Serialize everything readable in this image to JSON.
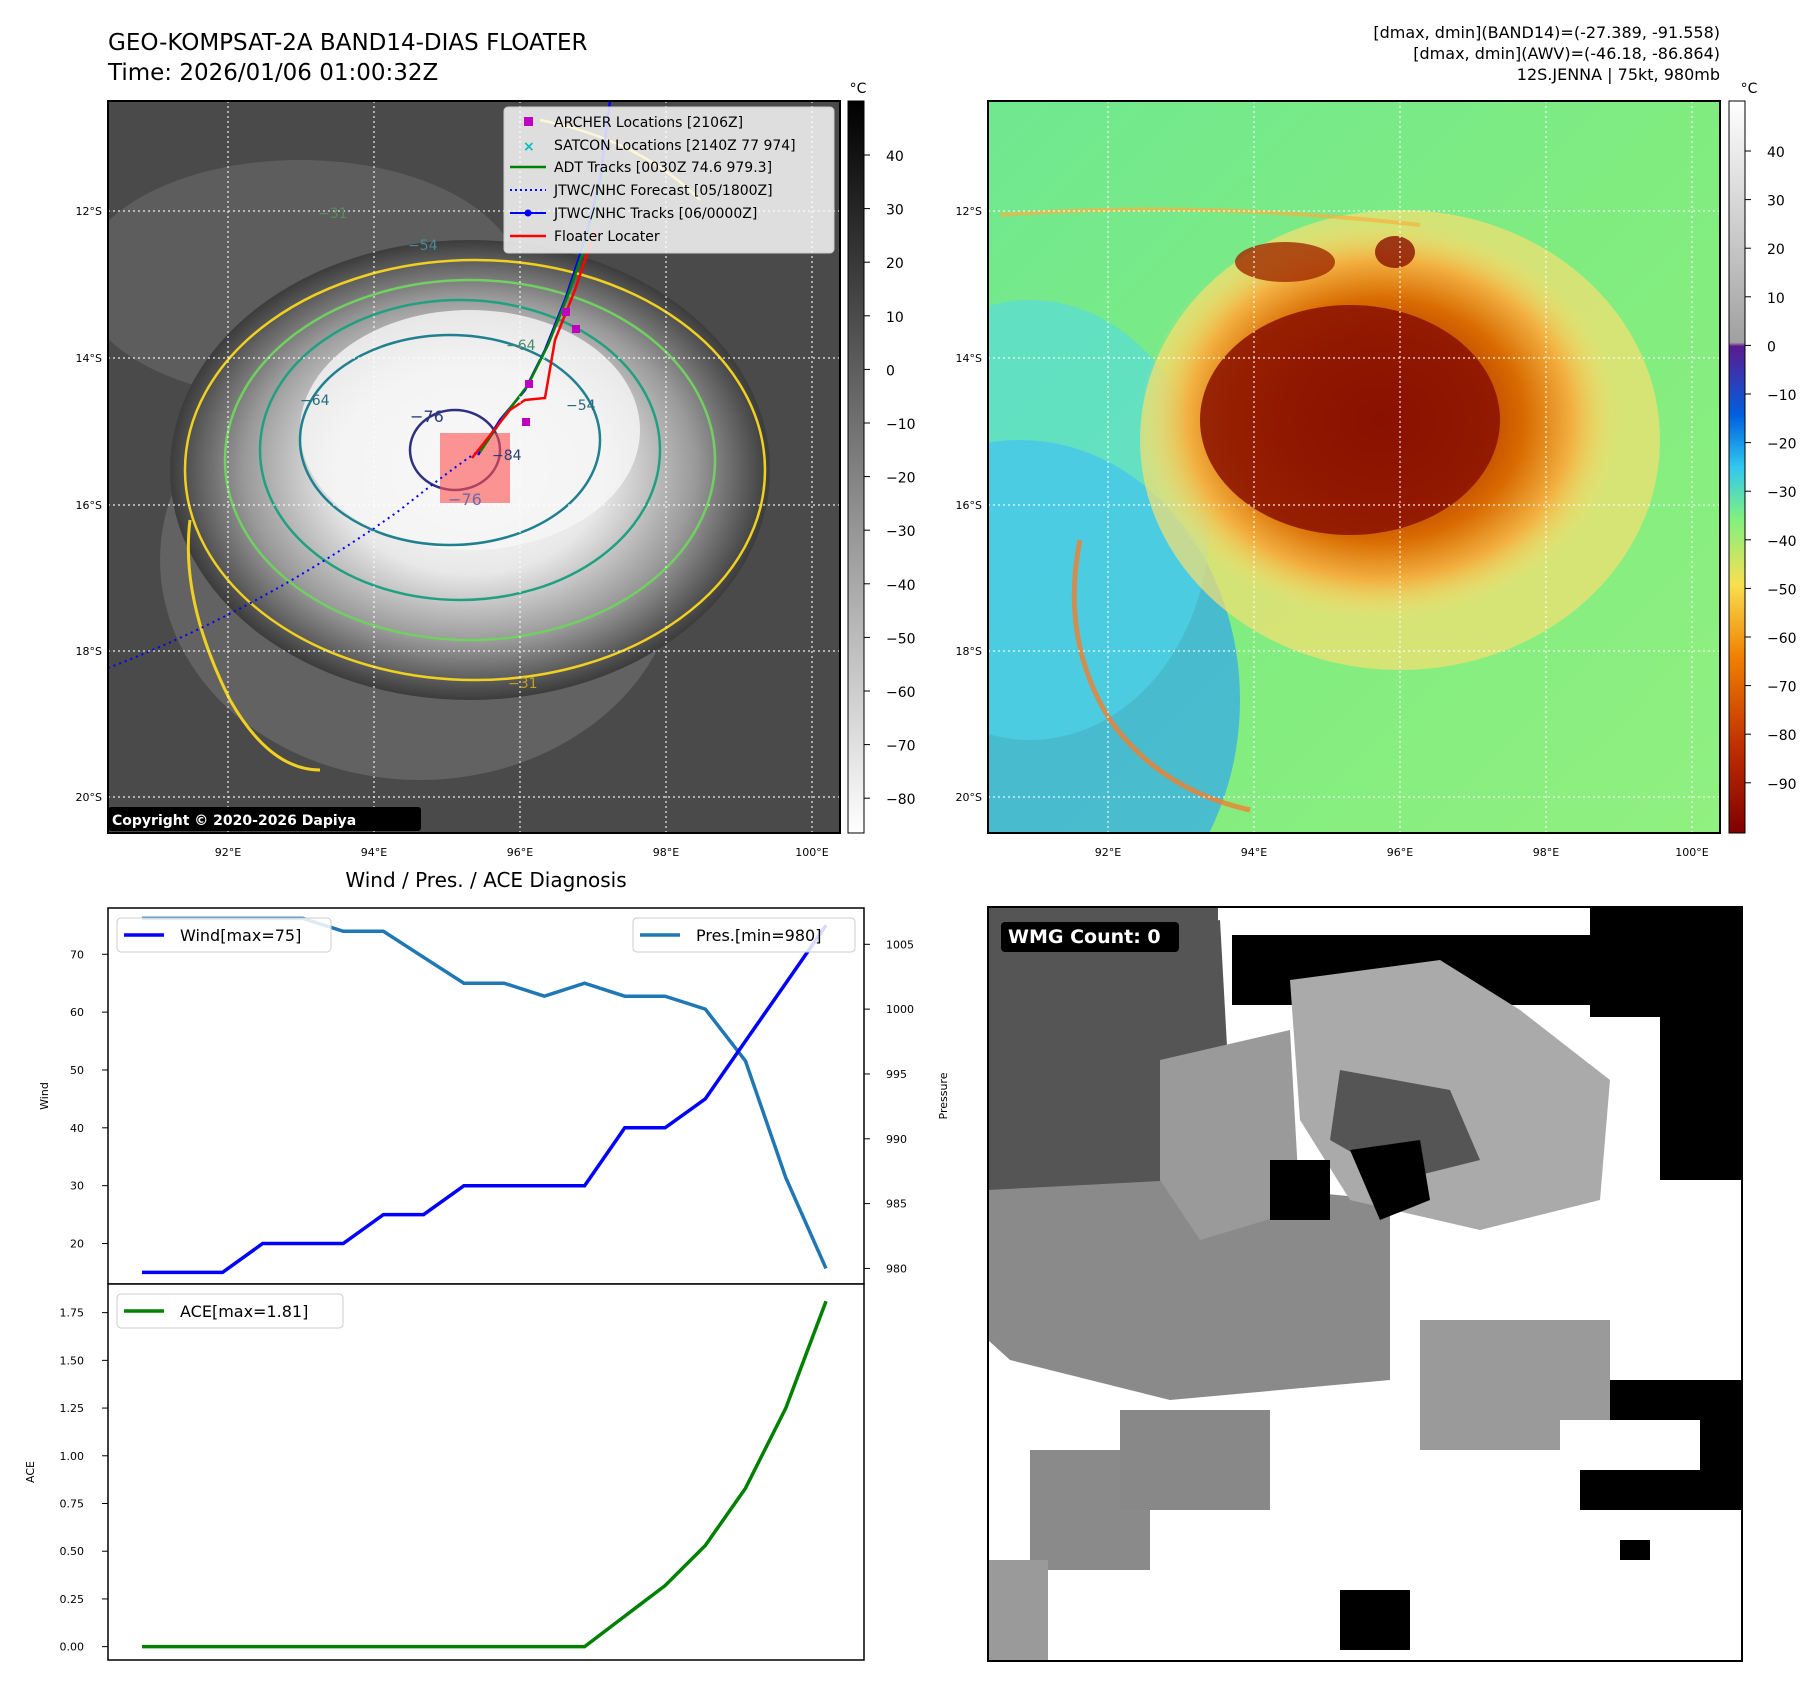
{
  "header": {
    "title_line1": "GEO-KOMPSAT-2A BAND14-DIAS FLOATER",
    "title_line2": "Time: 2026/01/06 01:00:32Z",
    "info_line1": "[dmax, dmin](BAND14)=(-27.389, -91.558)",
    "info_line2": "[dmax, dmin](AWV)=(-46.18, -86.864)",
    "info_line3": "12S.JENNA | 75kt, 980mb"
  },
  "left_map": {
    "copyright": "Copyright © 2020-2026 Dapiya",
    "colorbar_unit": "°C",
    "colorbar_ticks": [
      "40",
      "30",
      "20",
      "10",
      "0",
      "−10",
      "−20",
      "−30",
      "−40",
      "−50",
      "−60",
      "−70",
      "−80"
    ],
    "lat_labels": [
      "12°S",
      "14°S",
      "16°S",
      "18°S",
      "20°S"
    ],
    "lon_labels": [
      "92°E",
      "94°E",
      "96°E",
      "98°E",
      "100°E"
    ],
    "contour_labels": [
      "−31",
      "−54",
      "−64",
      "−76",
      "−76",
      "−54",
      "−31",
      "−64",
      "−84"
    ],
    "legend": [
      {
        "label": "ARCHER Locations [2106Z]",
        "color": "#c000c0",
        "marker": "square"
      },
      {
        "label": "SATCON Locations [2140Z 77 974]",
        "color": "#00c0c0",
        "marker": "x"
      },
      {
        "label": "ADT Tracks [0030Z 74.6 979.3]",
        "color": "#008000",
        "marker": "line"
      },
      {
        "label": "JTWC/NHC Forecast [05/1800Z]",
        "color": "#0000ff",
        "marker": "dotted"
      },
      {
        "label": "JTWC/NHC Tracks [06/0000Z]",
        "color": "#0000ff",
        "marker": "line-dot"
      },
      {
        "label": "Floater Locater",
        "color": "#ff0000",
        "marker": "line"
      }
    ]
  },
  "right_map": {
    "colorbar_unit": "°C",
    "colorbar_ticks": [
      "40",
      "30",
      "20",
      "10",
      "0",
      "−10",
      "−20",
      "−30",
      "−40",
      "−50",
      "−60",
      "−70",
      "−80",
      "−90"
    ],
    "lat_labels": [
      "12°S",
      "14°S",
      "16°S",
      "18°S",
      "20°S"
    ],
    "lon_labels": [
      "92°E",
      "94°E",
      "96°E",
      "98°E",
      "100°E"
    ]
  },
  "diagnosis": {
    "title": "Wind / Pres. / ACE Diagnosis",
    "wind_ylabel": "Wind",
    "pres_ylabel": "Pressure",
    "ace_ylabel": "ACE",
    "wind_legend": "Wind[max=75]",
    "pres_legend": "Pres.[min=980]",
    "ace_legend": "ACE[max=1.81]",
    "colors": {
      "wind": "#0000ff",
      "pres": "#1f77b4",
      "ace": "#008000"
    }
  },
  "wmg": {
    "label": "WMG Count: 0"
  },
  "chart_data": [
    {
      "type": "line",
      "title": "Wind / Pres. / ACE Diagnosis",
      "ylabel": "Wind",
      "ylim": [
        13,
        78
      ],
      "yticks": [
        20,
        30,
        40,
        50,
        60,
        70
      ],
      "series": [
        {
          "name": "Wind[max=75]",
          "values": [
            15,
            15,
            15,
            20,
            20,
            20,
            25,
            25,
            30,
            30,
            30,
            30,
            40,
            40,
            45,
            55,
            65,
            75
          ]
        }
      ]
    },
    {
      "type": "line",
      "ylabel": "Pressure",
      "ylim": [
        978.8,
        1007.8
      ],
      "yticks": [
        980,
        985,
        990,
        995,
        1000,
        1005
      ],
      "series": [
        {
          "name": "Pres.[min=980]",
          "values": [
            1007,
            1007,
            1007,
            1007,
            1007,
            1006,
            1006,
            1004,
            1002,
            1002,
            1001,
            1002,
            1001,
            1001,
            1000,
            996,
            987,
            980
          ]
        }
      ]
    },
    {
      "type": "line",
      "ylabel": "ACE",
      "ylim": [
        -0.07,
        1.9
      ],
      "yticks": [
        "0.00",
        "0.25",
        "0.50",
        "0.75",
        "1.00",
        "1.25",
        "1.50",
        "1.75"
      ],
      "series": [
        {
          "name": "ACE[max=1.81]",
          "values": [
            0,
            0,
            0,
            0,
            0,
            0,
            0,
            0,
            0,
            0,
            0,
            0,
            0.16,
            0.32,
            0.53,
            0.83,
            1.25,
            1.81
          ]
        }
      ]
    }
  ]
}
